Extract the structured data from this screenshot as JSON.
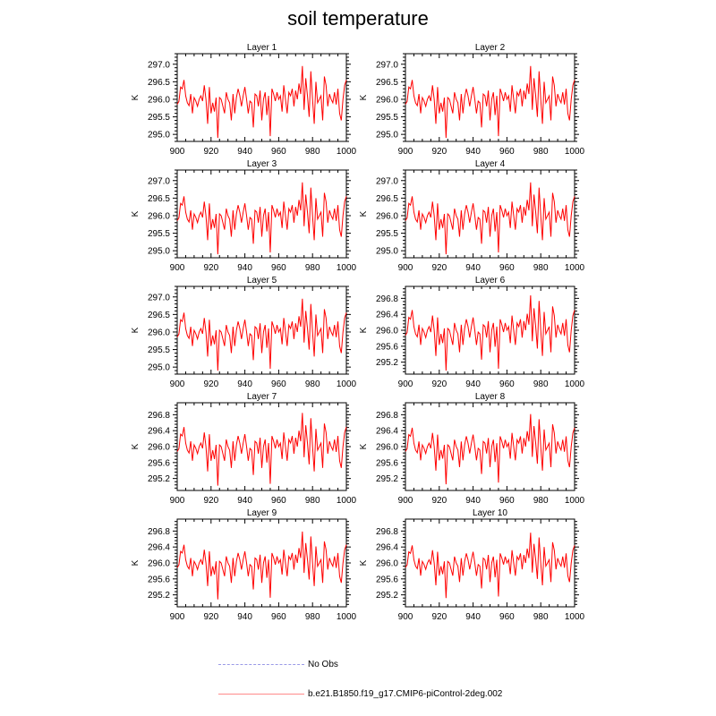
{
  "title": "soil temperature",
  "chart_data": [
    {
      "type": "line",
      "title": "Layer 1",
      "xlabel": "",
      "ylabel": "K",
      "xlim": [
        900,
        1000
      ],
      "ylim": [
        294.8,
        297.3
      ],
      "xticks": [
        900,
        920,
        940,
        960,
        980,
        1000
      ],
      "xtick_labels": [
        "900",
        "920",
        "940",
        "960",
        "980",
        "1000"
      ],
      "yticks": [
        295.0,
        295.5,
        296.0,
        296.5,
        297.0
      ],
      "ytick_labels": [
        "295.0",
        "295.5",
        "296.0",
        "296.5",
        "297.0"
      ],
      "series": [
        {
          "name": "b.e21.B1850.f19_g17.CMIP6-piControl-2deg.002",
          "color": "#ff0000"
        }
      ]
    },
    {
      "type": "line",
      "title": "Layer 2",
      "xlabel": "",
      "ylabel": "K",
      "xlim": [
        900,
        1000
      ],
      "ylim": [
        294.8,
        297.3
      ],
      "xticks": [
        900,
        920,
        940,
        960,
        980,
        1000
      ],
      "xtick_labels": [
        "900",
        "920",
        "940",
        "960",
        "980",
        "1000"
      ],
      "yticks": [
        295.0,
        295.5,
        296.0,
        296.5,
        297.0
      ],
      "ytick_labels": [
        "295.0",
        "295.5",
        "296.0",
        "296.5",
        "297.0"
      ],
      "series": [
        {
          "name": "b.e21.B1850.f19_g17.CMIP6-piControl-2deg.002",
          "color": "#ff0000"
        }
      ]
    },
    {
      "type": "line",
      "title": "Layer 3",
      "xlabel": "",
      "ylabel": "K",
      "xlim": [
        900,
        1000
      ],
      "ylim": [
        294.8,
        297.3
      ],
      "xticks": [
        900,
        920,
        940,
        960,
        980,
        1000
      ],
      "xtick_labels": [
        "900",
        "920",
        "940",
        "960",
        "980",
        "1000"
      ],
      "yticks": [
        295.0,
        295.5,
        296.0,
        296.5,
        297.0
      ],
      "ytick_labels": [
        "295.0",
        "295.5",
        "296.0",
        "296.5",
        "297.0"
      ],
      "series": [
        {
          "name": "b.e21.B1850.f19_g17.CMIP6-piControl-2deg.002",
          "color": "#ff0000"
        }
      ]
    },
    {
      "type": "line",
      "title": "Layer 4",
      "xlabel": "",
      "ylabel": "K",
      "xlim": [
        900,
        1000
      ],
      "ylim": [
        294.8,
        297.3
      ],
      "xticks": [
        900,
        920,
        940,
        960,
        980,
        1000
      ],
      "xtick_labels": [
        "900",
        "920",
        "940",
        "960",
        "980",
        "1000"
      ],
      "yticks": [
        295.0,
        295.5,
        296.0,
        296.5,
        297.0
      ],
      "ytick_labels": [
        "295.0",
        "295.5",
        "296.0",
        "296.5",
        "297.0"
      ],
      "series": [
        {
          "name": "b.e21.B1850.f19_g17.CMIP6-piControl-2deg.002",
          "color": "#ff0000"
        }
      ]
    },
    {
      "type": "line",
      "title": "Layer 5",
      "xlabel": "",
      "ylabel": "K",
      "xlim": [
        900,
        1000
      ],
      "ylim": [
        294.8,
        297.3
      ],
      "xticks": [
        900,
        920,
        940,
        960,
        980,
        1000
      ],
      "xtick_labels": [
        "900",
        "920",
        "940",
        "960",
        "980",
        "1000"
      ],
      "yticks": [
        295.0,
        295.5,
        296.0,
        296.5,
        297.0
      ],
      "ytick_labels": [
        "295.0",
        "295.5",
        "296.0",
        "296.5",
        "297.0"
      ],
      "series": [
        {
          "name": "b.e21.B1850.f19_g17.CMIP6-piControl-2deg.002",
          "color": "#ff0000"
        }
      ]
    },
    {
      "type": "line",
      "title": "Layer 6",
      "xlabel": "",
      "ylabel": "K",
      "xlim": [
        900,
        1000
      ],
      "ylim": [
        294.9,
        297.1
      ],
      "xticks": [
        900,
        920,
        940,
        960,
        980,
        1000
      ],
      "xtick_labels": [
        "900",
        "920",
        "940",
        "960",
        "980",
        "1000"
      ],
      "yticks": [
        295.2,
        295.6,
        296.0,
        296.4,
        296.8
      ],
      "ytick_labels": [
        "295.2",
        "295.6",
        "296.0",
        "296.4",
        "296.8"
      ],
      "series": [
        {
          "name": "b.e21.B1850.f19_g17.CMIP6-piControl-2deg.002",
          "color": "#ff0000"
        }
      ]
    },
    {
      "type": "line",
      "title": "Layer 7",
      "xlabel": "",
      "ylabel": "K",
      "xlim": [
        900,
        1000
      ],
      "ylim": [
        294.9,
        297.1
      ],
      "xticks": [
        900,
        920,
        940,
        960,
        980,
        1000
      ],
      "xtick_labels": [
        "900",
        "920",
        "940",
        "960",
        "980",
        "1000"
      ],
      "yticks": [
        295.2,
        295.6,
        296.0,
        296.4,
        296.8
      ],
      "ytick_labels": [
        "295.2",
        "295.6",
        "296.0",
        "296.4",
        "296.8"
      ],
      "series": [
        {
          "name": "b.e21.B1850.f19_g17.CMIP6-piControl-2deg.002",
          "color": "#ff0000"
        }
      ]
    },
    {
      "type": "line",
      "title": "Layer 8",
      "xlabel": "",
      "ylabel": "K",
      "xlim": [
        900,
        1000
      ],
      "ylim": [
        294.9,
        297.1
      ],
      "xticks": [
        900,
        920,
        940,
        960,
        980,
        1000
      ],
      "xtick_labels": [
        "900",
        "920",
        "940",
        "960",
        "980",
        "1000"
      ],
      "yticks": [
        295.2,
        295.6,
        296.0,
        296.4,
        296.8
      ],
      "ytick_labels": [
        "295.2",
        "295.6",
        "296.0",
        "296.4",
        "296.8"
      ],
      "series": [
        {
          "name": "b.e21.B1850.f19_g17.CMIP6-piControl-2deg.002",
          "color": "#ff0000"
        }
      ]
    },
    {
      "type": "line",
      "title": "Layer 9",
      "xlabel": "",
      "ylabel": "K",
      "xlim": [
        900,
        1000
      ],
      "ylim": [
        294.9,
        297.1
      ],
      "xticks": [
        900,
        920,
        940,
        960,
        980,
        1000
      ],
      "xtick_labels": [
        "900",
        "920",
        "940",
        "960",
        "980",
        "1000"
      ],
      "yticks": [
        295.2,
        295.6,
        296.0,
        296.4,
        296.8
      ],
      "ytick_labels": [
        "295.2",
        "295.6",
        "296.0",
        "296.4",
        "296.8"
      ],
      "series": [
        {
          "name": "b.e21.B1850.f19_g17.CMIP6-piControl-2deg.002",
          "color": "#ff0000"
        }
      ]
    },
    {
      "type": "line",
      "title": "Layer 10",
      "xlabel": "",
      "ylabel": "K",
      "xlim": [
        900,
        1000
      ],
      "ylim": [
        294.9,
        297.1
      ],
      "xticks": [
        900,
        920,
        940,
        960,
        980,
        1000
      ],
      "xtick_labels": [
        "900",
        "920",
        "940",
        "960",
        "980",
        "1000"
      ],
      "yticks": [
        295.2,
        295.6,
        296.0,
        296.4,
        296.8
      ],
      "ytick_labels": [
        "295.2",
        "295.6",
        "296.0",
        "296.4",
        "296.8"
      ],
      "series": [
        {
          "name": "b.e21.B1850.f19_g17.CMIP6-piControl-2deg.002",
          "color": "#ff0000"
        }
      ]
    }
  ],
  "shared_series": {
    "x_start": 900,
    "x_step": 1,
    "values": [
      295.86,
      295.94,
      296.35,
      296.3,
      296.55,
      296.1,
      295.9,
      295.82,
      296.15,
      295.6,
      296.05,
      295.95,
      295.8,
      296.0,
      296.1,
      295.95,
      296.4,
      296.0,
      295.3,
      296.35,
      295.6,
      295.9,
      295.65,
      296.05,
      294.9,
      296.05,
      296.0,
      295.8,
      295.6,
      296.2,
      296.0,
      295.9,
      295.4,
      296.15,
      295.6,
      296.05,
      296.3,
      296.1,
      295.8,
      296.1,
      296.35,
      296.0,
      295.6,
      295.95,
      295.9,
      295.2,
      296.15,
      296.1,
      295.8,
      296.25,
      295.4,
      296.0,
      296.2,
      295.55,
      296.1,
      294.95,
      296.3,
      296.15,
      295.95,
      296.2,
      296.0,
      296.1,
      295.65,
      296.4,
      296.0,
      295.6,
      296.2,
      296.1,
      296.3,
      295.8,
      296.25,
      296.0,
      296.45,
      296.15,
      296.95,
      295.7,
      296.6,
      296.1,
      295.5,
      296.8,
      296.0,
      295.3,
      296.5,
      295.9,
      296.0,
      296.1,
      295.4,
      296.65,
      296.4,
      295.8,
      296.15,
      296.0,
      295.9,
      296.2,
      295.85,
      296.3,
      295.6,
      295.4,
      296.0,
      296.4,
      296.55
    ]
  },
  "legend": {
    "obs_label": "No Obs",
    "model_label": "b.e21.B1850.f19_g17.CMIP6-piControl-2deg.002"
  },
  "colors": {
    "series": "#ff0000",
    "obs": "#9a9ae6",
    "model_legend": "#ff8a8a",
    "axes": "#000000"
  }
}
